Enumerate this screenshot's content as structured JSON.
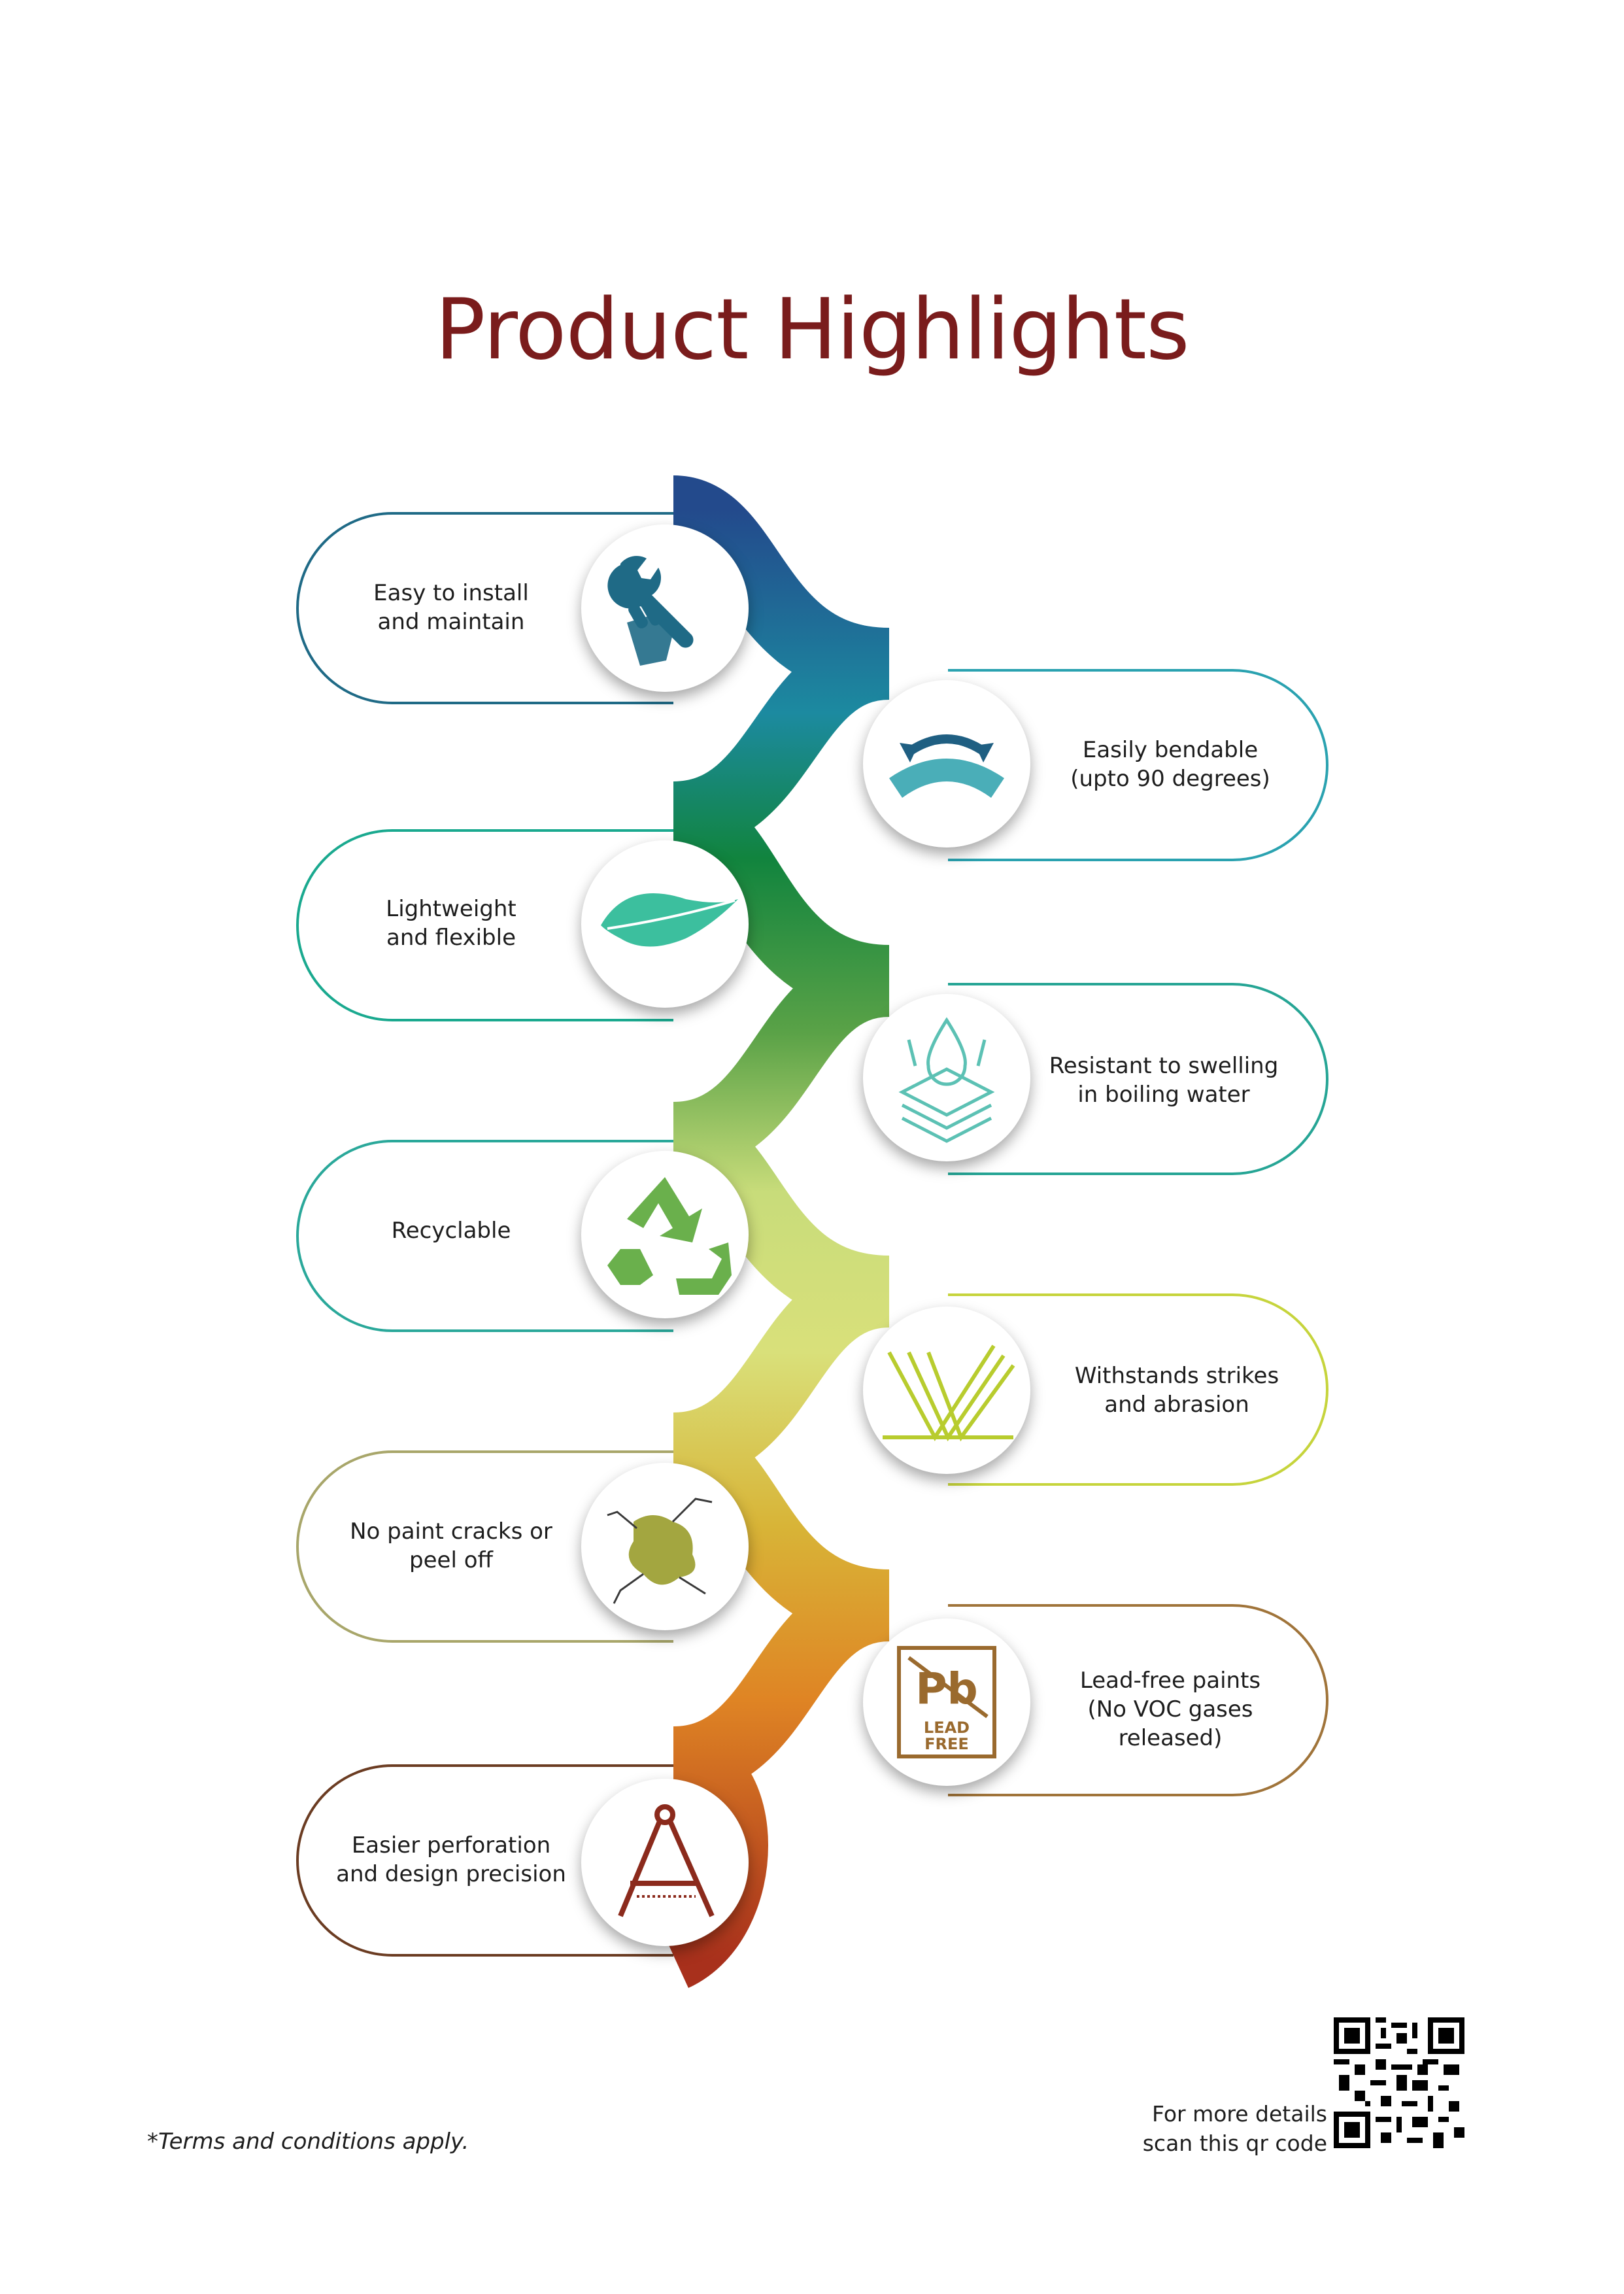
{
  "title": "Product Highlights",
  "highlights": [
    {
      "line1": "Easy to install",
      "line2": "and maintain",
      "line3": "",
      "icon": "wrench-hand-icon",
      "color": "#1f6a86"
    },
    {
      "line1": "Easily bendable",
      "line2": "(upto 90 degrees)",
      "line3": "",
      "icon": "bend-arrows-icon",
      "color": "#2aa2b0"
    },
    {
      "line1": "Lightweight",
      "line2": "and flexible",
      "line3": "",
      "icon": "feather-icon",
      "color": "#1aa98f"
    },
    {
      "line1": "Resistant to swelling",
      "line2": "in boiling water",
      "line3": "",
      "icon": "water-drop-layers-icon",
      "color": "#26a595"
    },
    {
      "line1": "Recyclable",
      "line2": "",
      "line3": "",
      "icon": "recycle-icon",
      "color": "#6ab04c"
    },
    {
      "line1": "Withstands strikes",
      "line2": "and abrasion",
      "line3": "",
      "icon": "strike-arrows-icon",
      "color": "#b8cc2e"
    },
    {
      "line1": "No paint cracks or",
      "line2": "peel off",
      "line3": "",
      "icon": "cracked-wall-icon",
      "color": "#a3a640"
    },
    {
      "line1": "Lead-free paints",
      "line2": "(No VOC gases",
      "line3": "released)",
      "icon": "lead-free-icon",
      "color": "#9a6a2e"
    },
    {
      "line1": "Easier perforation",
      "line2": "and design precision",
      "line3": "",
      "icon": "compass-icon",
      "color": "#8b2a1c"
    }
  ],
  "lead_free_badge": {
    "line1": "LEAD",
    "line2": "FREE",
    "symbol": "Pb"
  },
  "footer": {
    "terms": "*Terms and conditions apply.",
    "qr_line1": "For more details",
    "qr_line2": "scan this qr code",
    "qr_icon": "qr-code-icon"
  }
}
